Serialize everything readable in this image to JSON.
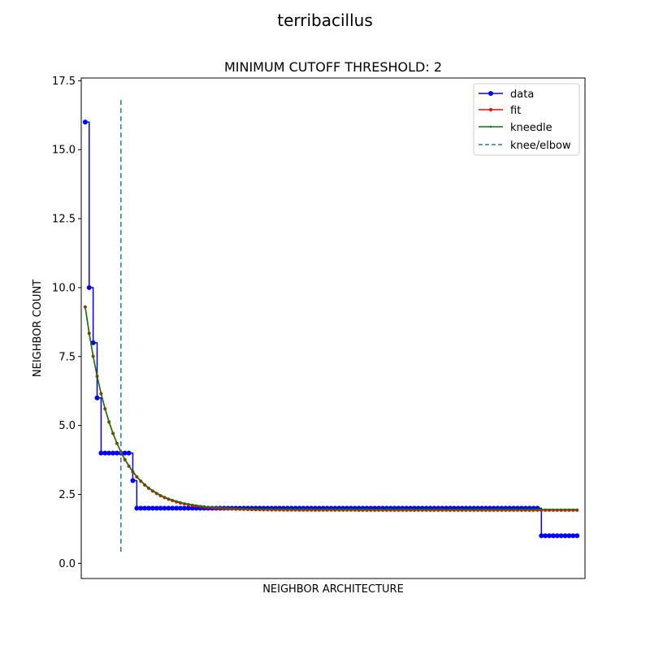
{
  "figure": {
    "suptitle": "terribacillus"
  },
  "chart_data": {
    "type": "line",
    "title": "MINIMUM CUTOFF THRESHOLD: 2",
    "xlabel": "NEIGHBOR ARCHITECTURE",
    "ylabel": "NEIGHBOR COUNT",
    "xticks_shown": false,
    "xlim": [
      -1,
      126
    ],
    "ylim": [
      -0.55,
      17.6
    ],
    "yticks": [
      0.0,
      2.5,
      5.0,
      7.5,
      10.0,
      12.5,
      15.0,
      17.5
    ],
    "ytick_labels": [
      "0.0",
      "2.5",
      "5.0",
      "7.5",
      "10.0",
      "12.5",
      "15.0",
      "17.5"
    ],
    "grid": false,
    "legend_position": "top-right",
    "legend": [
      "data",
      "fit",
      "kneedle",
      "knee/elbow"
    ],
    "colors": {
      "data": "#0000ff",
      "fit": "#ff0000",
      "kneedle": "#008000",
      "knee": "#1f77b4"
    },
    "series": [
      {
        "name": "data",
        "style": "line-markers",
        "segments": [
          {
            "from": 0,
            "to": 0,
            "value": 16
          },
          {
            "from": 1,
            "to": 1,
            "value": 10
          },
          {
            "from": 2,
            "to": 2,
            "value": 8
          },
          {
            "from": 3,
            "to": 3,
            "value": 6
          },
          {
            "from": 4,
            "to": 11,
            "value": 4
          },
          {
            "from": 12,
            "to": 12,
            "value": 3
          },
          {
            "from": 13,
            "to": 114,
            "value": 2
          },
          {
            "from": 115,
            "to": 124,
            "value": 1
          }
        ]
      },
      {
        "name": "fit",
        "style": "line-small-markers",
        "model": "exponential decay",
        "n_points": 125,
        "start_value": 9.3,
        "asymptote": 1.93,
        "decay_per_step": 0.87
      },
      {
        "name": "kneedle",
        "style": "line-small-markers",
        "model": "exponential decay",
        "n_points": 125,
        "start_value": 9.3,
        "asymptote": 1.95,
        "decay_per_step": 0.87
      }
    ],
    "knee": {
      "name": "knee/elbow",
      "x": 9,
      "ymin": 0.3,
      "ymax": 16.8,
      "style": "dashed"
    }
  }
}
